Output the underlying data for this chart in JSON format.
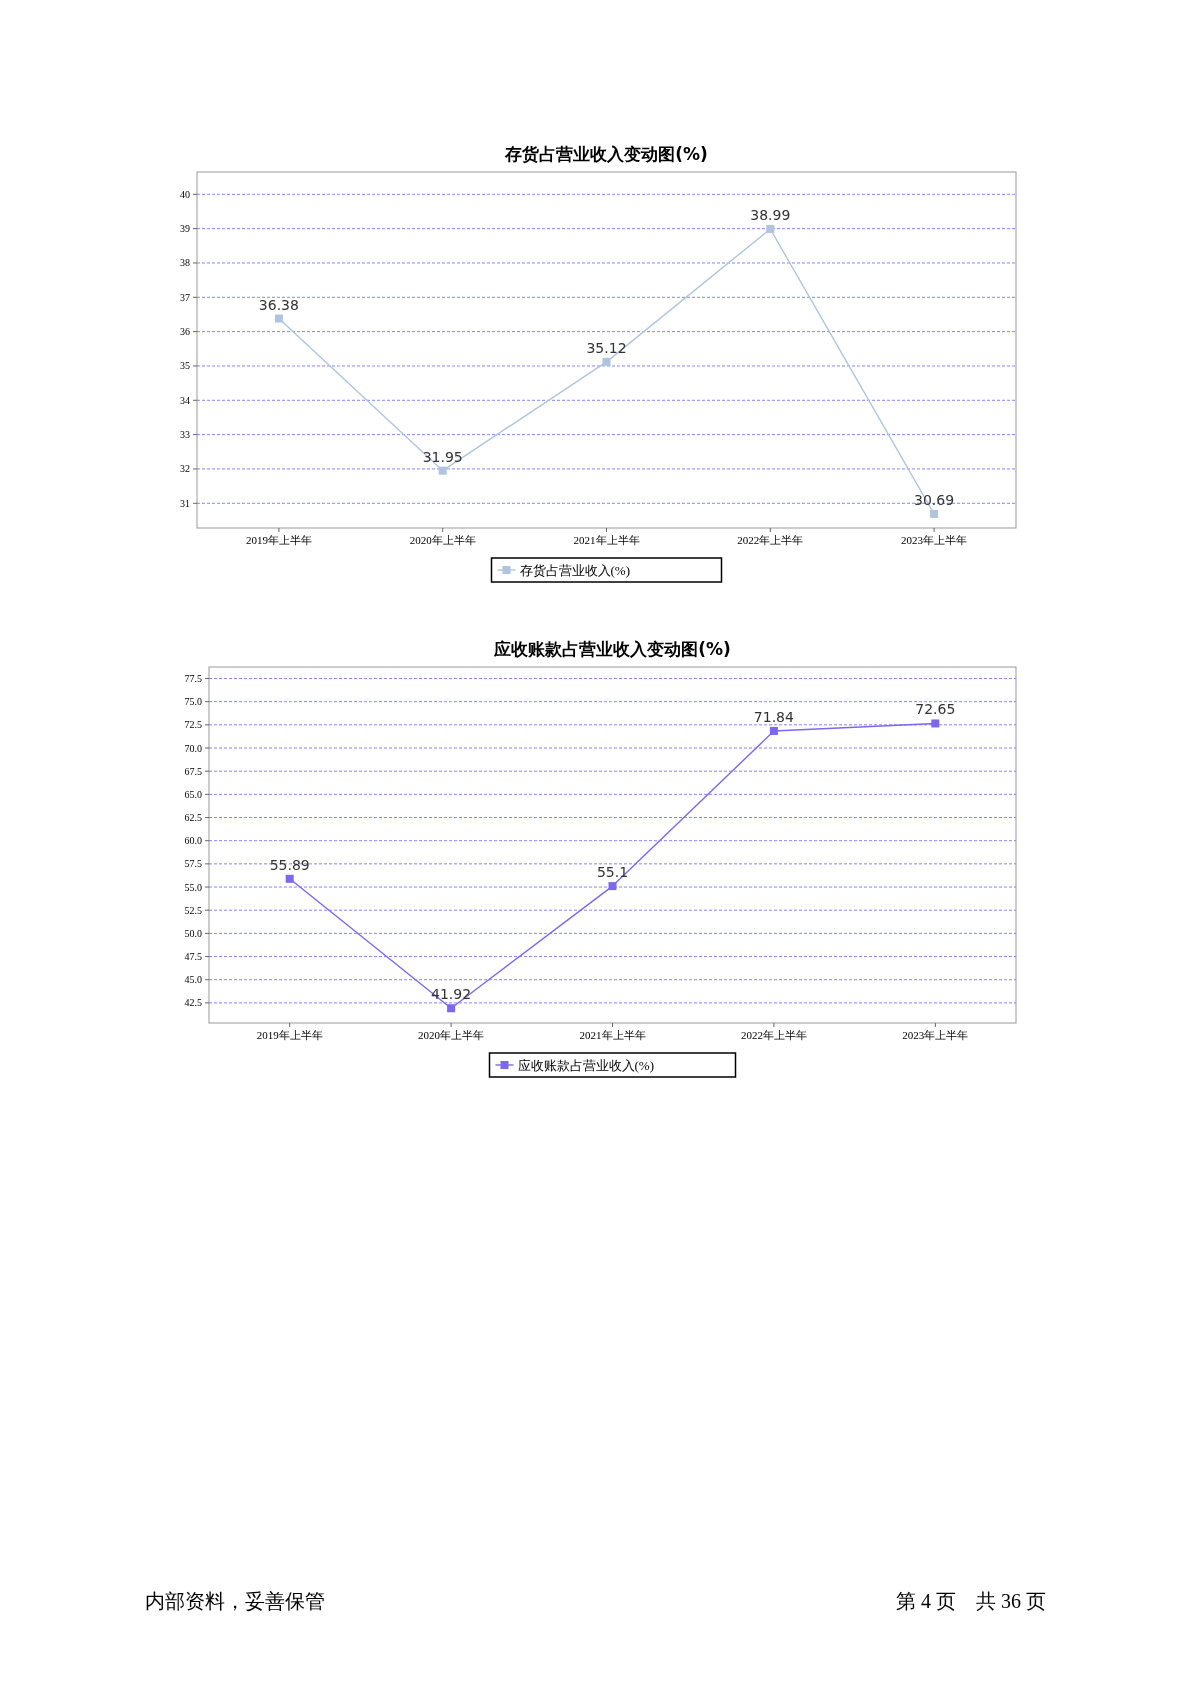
{
  "chart_data": [
    {
      "type": "line",
      "title": "存货占营业收入变动图(%)",
      "categories": [
        "2019年上半年",
        "2020年上半年",
        "2021年上半年",
        "2022年上半年",
        "2023年上半年"
      ],
      "series": [
        {
          "name": "存货占营业收入(%)",
          "color": "#b0c4de",
          "values": [
            36.38,
            31.95,
            35.12,
            38.99,
            30.69
          ]
        }
      ],
      "ylim": [
        30.28,
        40.65
      ],
      "yticks": [
        31,
        32,
        33,
        34,
        35,
        36,
        37,
        38,
        39,
        40
      ],
      "grid": "y",
      "legend": "bottom",
      "marker": "square",
      "data_labels": true
    },
    {
      "type": "line",
      "title": "应收账款占营业收入变动图(%)",
      "categories": [
        "2019年上半年",
        "2020年上半年",
        "2021年上半年",
        "2022年上半年",
        "2023年上半年"
      ],
      "series": [
        {
          "name": "应收账款占营业收入(%)",
          "color": "#7b68ee",
          "values": [
            55.89,
            41.92,
            55.1,
            71.84,
            72.65
          ]
        }
      ],
      "ylim": [
        40.33,
        78.74
      ],
      "yticks": [
        {
          "value": 42.5,
          "label": "42.5"
        },
        {
          "value": 45,
          "label": "45.0"
        },
        {
          "value": 47.5,
          "label": "47.5"
        },
        {
          "value": 50,
          "label": "50.0"
        },
        {
          "value": 52.5,
          "label": "52.5"
        },
        {
          "value": 55,
          "label": "55.0"
        },
        {
          "value": 57.5,
          "label": "57.5"
        },
        {
          "value": 60,
          "label": "60.0"
        },
        {
          "value": 62.5,
          "label": "62.5"
        },
        {
          "value": 65,
          "label": "65.0"
        },
        {
          "value": 67.5,
          "label": "67.5"
        },
        {
          "value": 70,
          "label": "70.0"
        },
        {
          "value": 72.5,
          "label": "72.5"
        },
        {
          "value": 75,
          "label": "75.0"
        },
        {
          "value": 77.5,
          "label": "77.5"
        }
      ],
      "grid": "y",
      "legend": "bottom",
      "marker": "square",
      "data_labels": true,
      "annotations": [
        "内部资料，妥善保管",
        "第 4 页　共 36 页"
      ]
    }
  ]
}
